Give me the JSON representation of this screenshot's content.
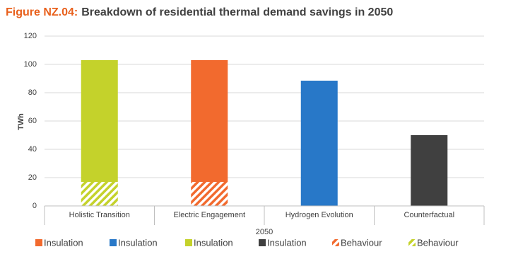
{
  "chart_data": {
    "type": "bar",
    "stacked": true,
    "title_label": "Figure NZ.04:",
    "title": "Breakdown of residential thermal demand savings in 2050",
    "y_label": "TWh",
    "x_label": "2050",
    "categories": [
      "Holistic Transition",
      "Electric Engagement",
      "Hydrogen Evolution",
      "Counterfactual"
    ],
    "series": [
      {
        "name": "Insulation",
        "color": "#f26a2e",
        "values": [
          null,
          86,
          null,
          null
        ]
      },
      {
        "name": "Insulation",
        "color": "#2878c8",
        "values": [
          null,
          null,
          88.5,
          null
        ]
      },
      {
        "name": "Insulation",
        "color": "#c4d22b",
        "values": [
          86,
          null,
          null,
          null
        ]
      },
      {
        "name": "Insulation",
        "color": "#404040",
        "values": [
          null,
          null,
          null,
          50
        ]
      },
      {
        "name": "Behaviour",
        "color": "#f26a2e",
        "pattern": "hatch",
        "values": [
          null,
          17,
          null,
          null
        ]
      },
      {
        "name": "Behaviour",
        "color": "#c4d22b",
        "pattern": "hatch",
        "values": [
          17,
          null,
          null,
          null
        ]
      }
    ],
    "ylim": [
      0,
      120
    ],
    "yticks": [
      0,
      20,
      40,
      60,
      80,
      100,
      120
    ],
    "grid": true
  }
}
